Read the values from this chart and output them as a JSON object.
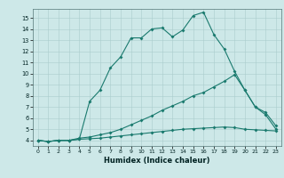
{
  "xlabel": "Humidex (Indice chaleur)",
  "bg_color": "#cde8e8",
  "grid_color": "#b8d8d8",
  "line_color": "#1a7a6e",
  "xlim": [
    -0.5,
    23.5
  ],
  "ylim": [
    3.5,
    15.8
  ],
  "xticks": [
    0,
    1,
    2,
    3,
    4,
    5,
    6,
    7,
    8,
    9,
    10,
    11,
    12,
    13,
    14,
    15,
    16,
    17,
    18,
    19,
    20,
    21,
    22,
    23
  ],
  "yticks": [
    4,
    5,
    6,
    7,
    8,
    9,
    10,
    11,
    12,
    13,
    14,
    15
  ],
  "line1_x": [
    0,
    1,
    2,
    3,
    4,
    5,
    6,
    7,
    8,
    9,
    10,
    11,
    12,
    13,
    14,
    15,
    16,
    17,
    18,
    19,
    20,
    21,
    22,
    23
  ],
  "line1_y": [
    4.0,
    3.9,
    4.0,
    4.0,
    4.1,
    7.5,
    8.5,
    10.5,
    11.5,
    13.2,
    13.2,
    14.0,
    14.1,
    13.3,
    13.9,
    15.2,
    15.5,
    13.5,
    12.2,
    10.2,
    8.5,
    7.0,
    6.3,
    5.0
  ],
  "line2_x": [
    0,
    1,
    2,
    3,
    4,
    5,
    6,
    7,
    8,
    9,
    10,
    11,
    12,
    13,
    14,
    15,
    16,
    17,
    18,
    19,
    20,
    21,
    22,
    23
  ],
  "line2_y": [
    4.0,
    3.9,
    4.0,
    4.0,
    4.2,
    4.3,
    4.5,
    4.7,
    5.0,
    5.4,
    5.8,
    6.2,
    6.7,
    7.1,
    7.5,
    8.0,
    8.3,
    8.8,
    9.3,
    9.9,
    8.5,
    7.0,
    6.5,
    5.3
  ],
  "line3_x": [
    0,
    1,
    2,
    3,
    4,
    5,
    6,
    7,
    8,
    9,
    10,
    11,
    12,
    13,
    14,
    15,
    16,
    17,
    18,
    19,
    20,
    21,
    22,
    23
  ],
  "line3_y": [
    4.0,
    3.9,
    4.0,
    4.0,
    4.1,
    4.15,
    4.2,
    4.3,
    4.4,
    4.5,
    4.6,
    4.7,
    4.8,
    4.9,
    5.0,
    5.05,
    5.1,
    5.15,
    5.2,
    5.15,
    5.0,
    4.95,
    4.9,
    4.85
  ]
}
